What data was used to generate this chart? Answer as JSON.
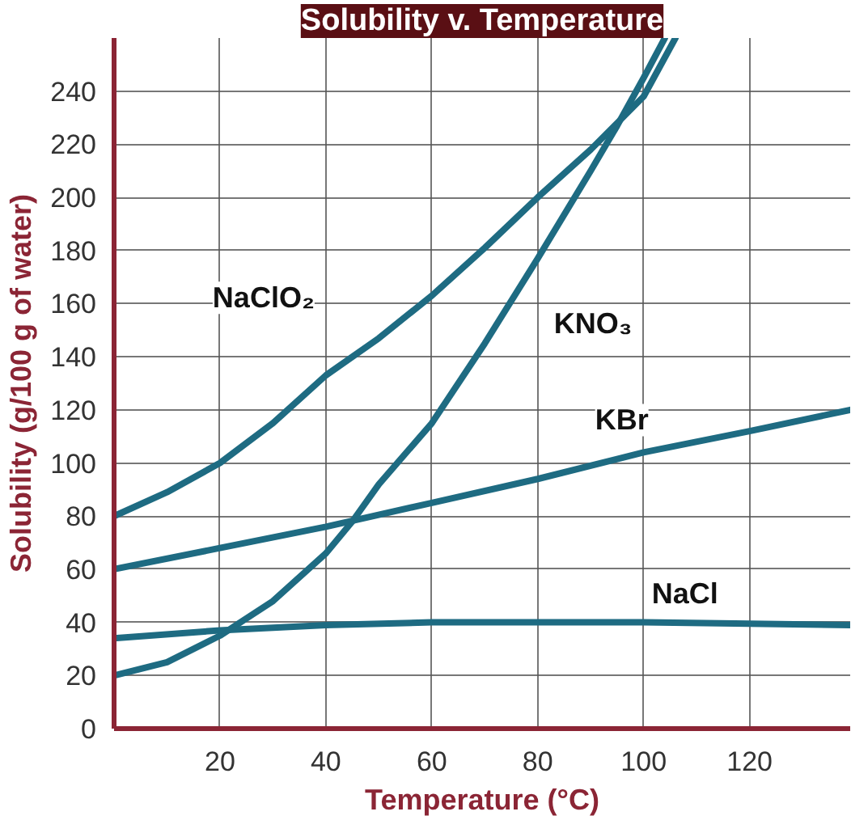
{
  "chart_data": {
    "type": "line",
    "title": "Solubility v. Temperature",
    "xlabel": "Temperature (°C)",
    "ylabel": "Solubility (g/100 g of water)",
    "xlim": [
      0,
      139
    ],
    "ylim": [
      0,
      260
    ],
    "xticks": [
      20,
      40,
      60,
      80,
      100,
      120
    ],
    "yticks": [
      0,
      20,
      40,
      60,
      80,
      100,
      120,
      140,
      160,
      180,
      200,
      220,
      240
    ],
    "grid": true,
    "line_style": "solid",
    "marker": "none",
    "series": [
      {
        "name": "NaClO₂",
        "color": "#1e6b82",
        "x": [
          0,
          10,
          20,
          30,
          40,
          50,
          60,
          70,
          80,
          90,
          100,
          106
        ],
        "values": [
          80,
          89,
          100,
          115,
          133,
          147,
          163,
          181,
          200,
          218,
          238,
          260
        ]
      },
      {
        "name": "KNO₃",
        "color": "#1e6b82",
        "x": [
          0,
          10,
          20,
          30,
          40,
          45,
          50,
          60,
          70,
          80,
          90,
          95,
          100,
          104
        ],
        "values": [
          20,
          25,
          35,
          48,
          66,
          78,
          92,
          115,
          145,
          177,
          210,
          227,
          245,
          260
        ]
      },
      {
        "name": "KBr",
        "color": "#1e6b82",
        "x": [
          0,
          20,
          40,
          60,
          80,
          100,
          120,
          139
        ],
        "values": [
          60,
          68,
          76,
          85,
          94,
          104,
          112,
          120
        ]
      },
      {
        "name": "NaCl",
        "color": "#1e6b82",
        "x": [
          0,
          20,
          40,
          60,
          80,
          100,
          120,
          139
        ],
        "values": [
          34,
          37,
          39,
          40,
          40,
          40,
          39.5,
          39
        ]
      }
    ]
  }
}
